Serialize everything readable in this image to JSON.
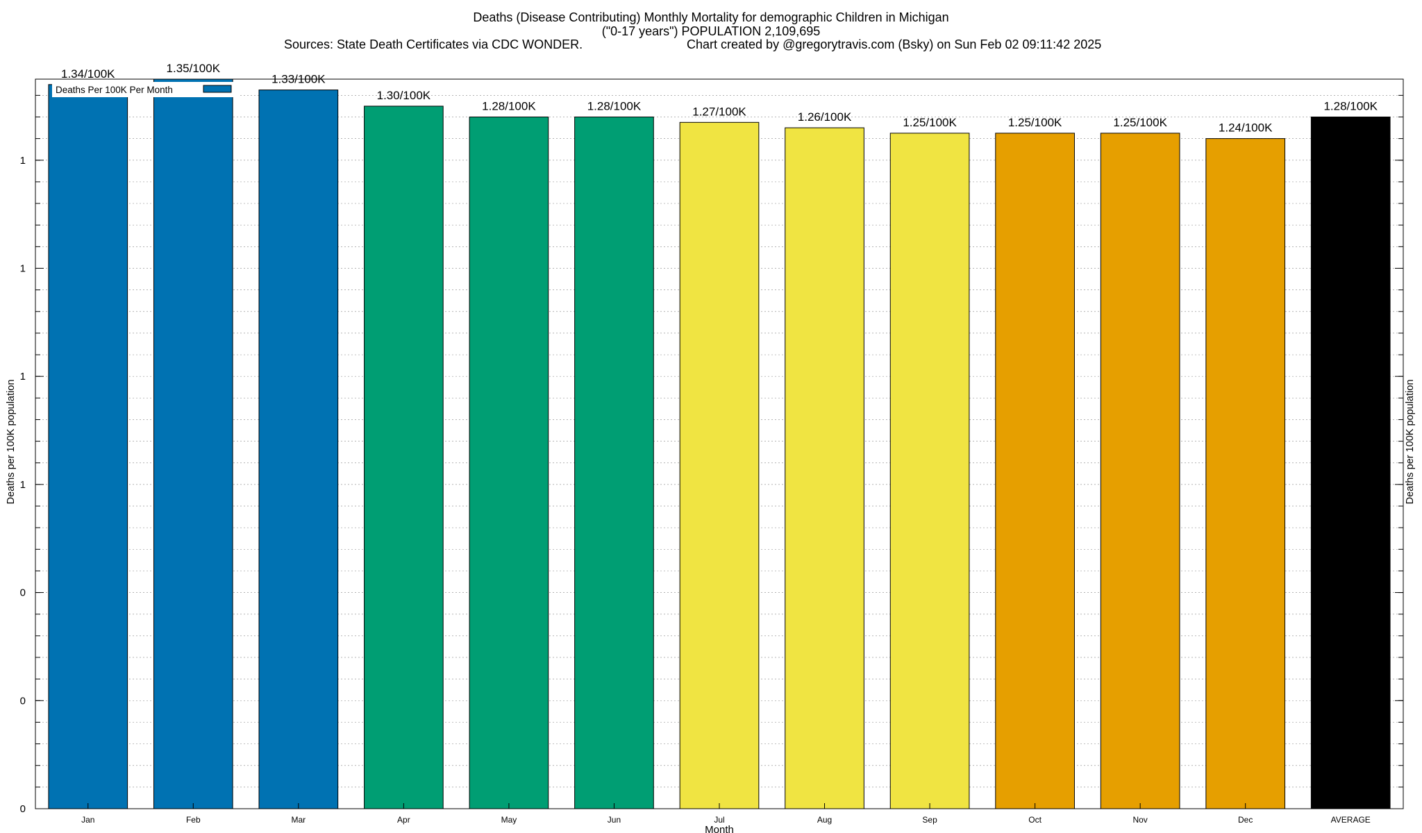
{
  "title_lines": [
    "Deaths (Disease Contributing) Monthly Mortality for demographic Children in Michigan",
    "(\"0-17 years\") POPULATION 2,109,695"
  ],
  "sources_text": "Sources: State Death Certificates via CDC WONDER.",
  "credit_text": "Chart created by @gregorytravis.com (Bsky) on Sun Feb 02 09:11:42 2025",
  "colors": {
    "q1": "#0072b2",
    "q2": "#009e73",
    "q3": "#f0e442",
    "q4": "#e69f00",
    "average": "#000000",
    "grid": "#9a9a9a",
    "frame": "#000000"
  },
  "chart_data": {
    "type": "bar",
    "xlabel": "Month",
    "ylabel": "Deaths per 100K population",
    "ylabel_right": "Deaths per 100K population",
    "legend": {
      "label": "Deaths Per 100K Per Month",
      "position": "top-left"
    },
    "grid": true,
    "ylim": [
      0,
      1.35
    ],
    "ytick_values": [
      0,
      0.2,
      0.4,
      0.6,
      0.8,
      1.0,
      1.2
    ],
    "ytick_labels": [
      "0",
      "0",
      "0",
      "1",
      "1",
      "1",
      "1"
    ],
    "categories": [
      "Jan",
      "Feb",
      "Mar",
      "Apr",
      "May",
      "Jun",
      "Jul",
      "Aug",
      "Sep",
      "Oct",
      "Nov",
      "Dec",
      "AVERAGE"
    ],
    "values": [
      1.34,
      1.35,
      1.33,
      1.3,
      1.28,
      1.28,
      1.27,
      1.26,
      1.25,
      1.25,
      1.25,
      1.24,
      1.28
    ],
    "data_labels": [
      "1.34/100K",
      "1.35/100K",
      "1.33/100K",
      "1.30/100K",
      "1.28/100K",
      "1.28/100K",
      "1.27/100K",
      "1.26/100K",
      "1.25/100K",
      "1.25/100K",
      "1.25/100K",
      "1.24/100K",
      "1.28/100K"
    ],
    "bar_colors": [
      "q1",
      "q1",
      "q1",
      "q2",
      "q2",
      "q2",
      "q3",
      "q3",
      "q3",
      "q4",
      "q4",
      "q4",
      "average"
    ]
  }
}
